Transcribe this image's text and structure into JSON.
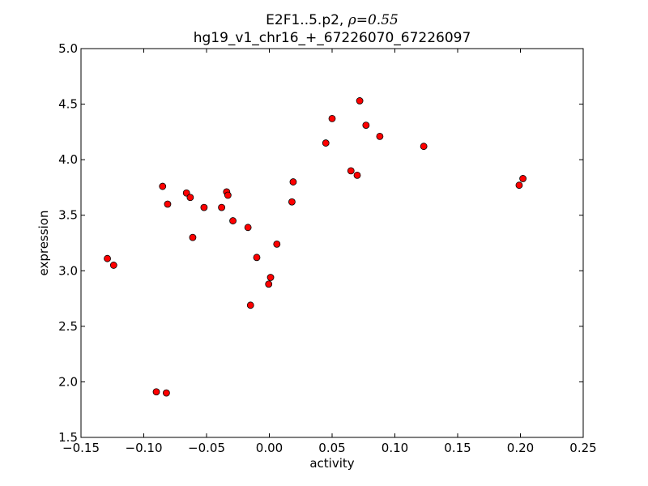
{
  "chart_data": {
    "type": "scatter",
    "title_prefix": "E2F1..5.p2, ",
    "title_symbol": "ρ",
    "title_value": "=0.55",
    "subtitle": "hg19_v1_chr16_+_67226070_67226097",
    "xlabel": "activity",
    "ylabel": "expression",
    "xlim": [
      -0.15,
      0.25
    ],
    "ylim": [
      1.5,
      5.0
    ],
    "xticks": [
      -0.15,
      -0.1,
      -0.05,
      0.0,
      0.05,
      0.1,
      0.15,
      0.2,
      0.25
    ],
    "xtick_labels": [
      "−0.15",
      "−0.10",
      "−0.05",
      "0.00",
      "0.05",
      "0.10",
      "0.15",
      "0.20",
      "0.25"
    ],
    "yticks": [
      1.5,
      2.0,
      2.5,
      3.0,
      3.5,
      4.0,
      4.5,
      5.0
    ],
    "ytick_labels": [
      "1.5",
      "2.0",
      "2.5",
      "3.0",
      "3.5",
      "4.0",
      "4.5",
      "5.0"
    ],
    "grid": false,
    "marker_color": "#ff0000",
    "marker_edge_color": "#000000",
    "points": [
      {
        "x": -0.129,
        "y": 3.11
      },
      {
        "x": -0.124,
        "y": 3.05
      },
      {
        "x": -0.09,
        "y": 1.91
      },
      {
        "x": -0.082,
        "y": 1.9
      },
      {
        "x": -0.085,
        "y": 3.76
      },
      {
        "x": -0.081,
        "y": 3.6
      },
      {
        "x": -0.066,
        "y": 3.7
      },
      {
        "x": -0.063,
        "y": 3.66
      },
      {
        "x": -0.061,
        "y": 3.3
      },
      {
        "x": -0.052,
        "y": 3.57
      },
      {
        "x": -0.038,
        "y": 3.57
      },
      {
        "x": -0.034,
        "y": 3.71
      },
      {
        "x": -0.033,
        "y": 3.68
      },
      {
        "x": -0.029,
        "y": 3.45
      },
      {
        "x": -0.017,
        "y": 3.39
      },
      {
        "x": -0.015,
        "y": 2.69
      },
      {
        "x": -0.01,
        "y": 3.12
      },
      {
        "x": -0.0005,
        "y": 2.88
      },
      {
        "x": 0.001,
        "y": 2.94
      },
      {
        "x": 0.006,
        "y": 3.24
      },
      {
        "x": 0.018,
        "y": 3.62
      },
      {
        "x": 0.019,
        "y": 3.8
      },
      {
        "x": 0.045,
        "y": 4.15
      },
      {
        "x": 0.05,
        "y": 4.37
      },
      {
        "x": 0.065,
        "y": 3.9
      },
      {
        "x": 0.07,
        "y": 3.86
      },
      {
        "x": 0.072,
        "y": 4.53
      },
      {
        "x": 0.077,
        "y": 4.31
      },
      {
        "x": 0.088,
        "y": 4.21
      },
      {
        "x": 0.123,
        "y": 4.12
      },
      {
        "x": 0.199,
        "y": 3.77
      },
      {
        "x": 0.202,
        "y": 3.83
      }
    ]
  }
}
